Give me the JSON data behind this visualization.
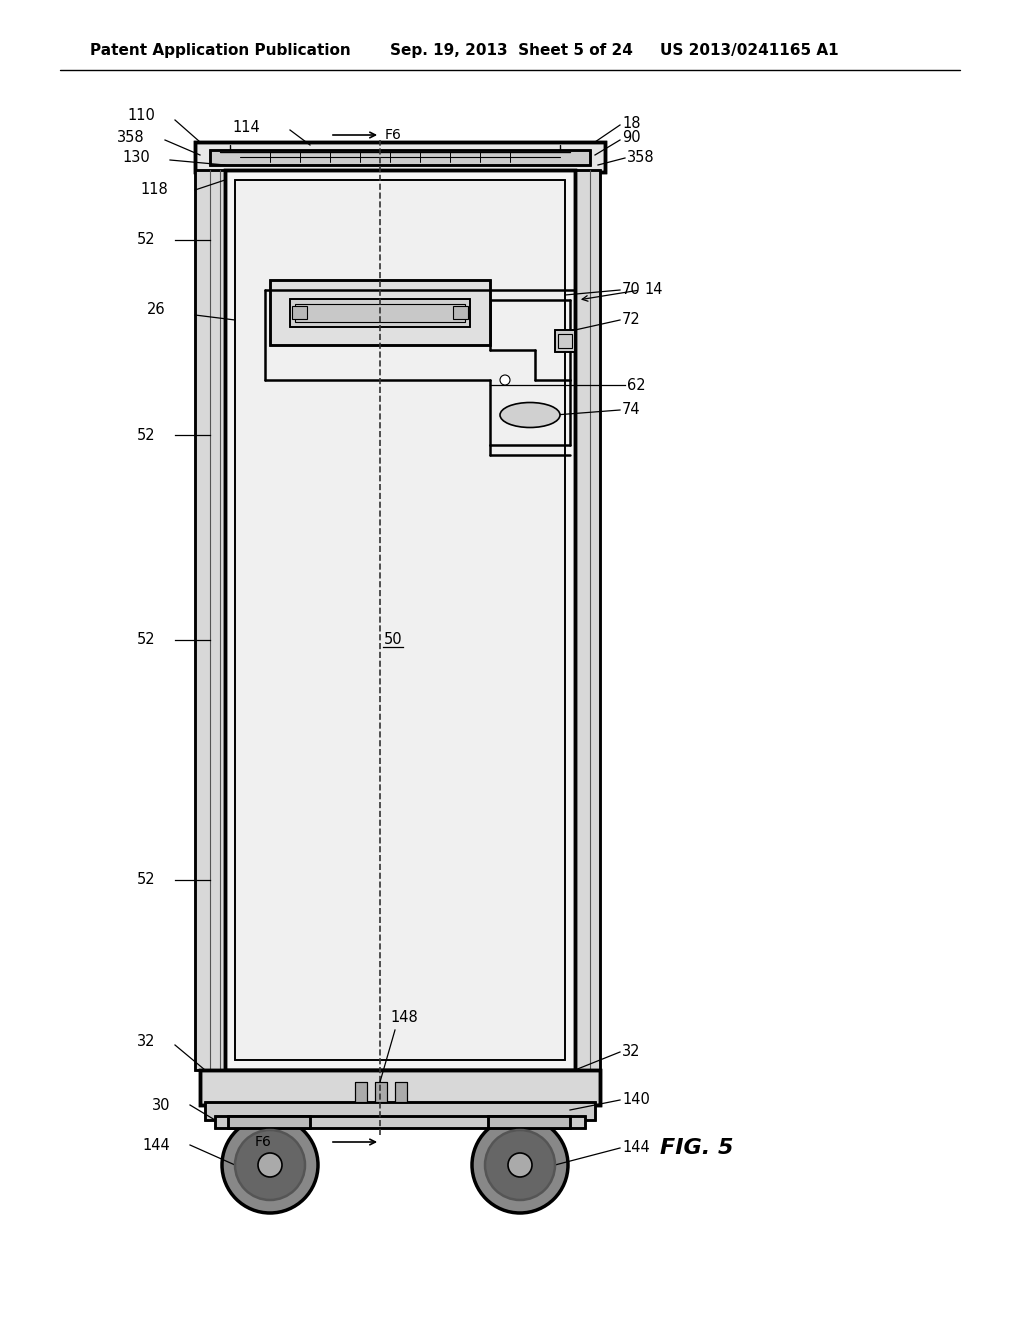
{
  "bg_color": "#ffffff",
  "line_color": "#000000",
  "header_text": "Patent Application Publication",
  "header_date": "Sep. 19, 2013  Sheet 5 of 24",
  "header_patent": "US 2013/0241165 A1",
  "fig_label": "FIG. 5",
  "title_fontsize": 11,
  "label_fontsize": 10.5,
  "fig_label_fontsize": 16
}
